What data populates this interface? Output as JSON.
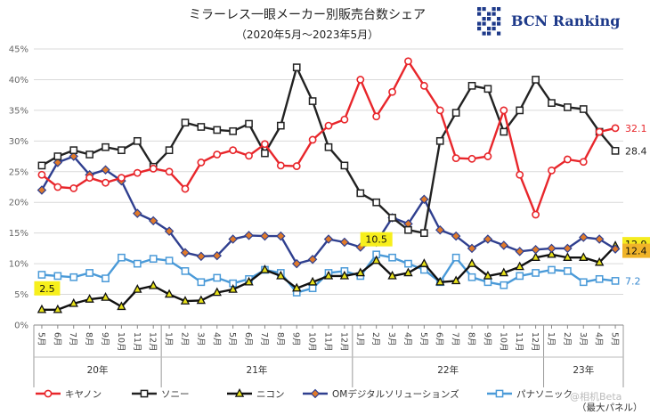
{
  "chart_data": {
    "type": "line",
    "title": "ミラーレス一眼メーカー別販売台数シェア",
    "subtitle": "（2020年5月～2023年5月）",
    "brand": "BCN Ranking",
    "note": "（最大パネル）",
    "watermark": "@相机Beta",
    "ylim": [
      0,
      45
    ],
    "yticks": [
      "0%",
      "5%",
      "10%",
      "15%",
      "20%",
      "25%",
      "30%",
      "35%",
      "40%",
      "45%"
    ],
    "grid": true,
    "legend_position": "bottom",
    "x": [
      "5月",
      "6月",
      "7月",
      "8月",
      "9月",
      "10月",
      "11月",
      "12月",
      "1月",
      "2月",
      "3月",
      "4月",
      "5月",
      "6月",
      "7月",
      "8月",
      "9月",
      "10月",
      "11月",
      "12月",
      "1月",
      "2月",
      "3月",
      "4月",
      "5月",
      "6月",
      "7月",
      "8月",
      "9月",
      "10月",
      "11月",
      "12月",
      "1月",
      "2月",
      "3月",
      "4月",
      "5月"
    ],
    "years": [
      {
        "label": "20年",
        "start": 0,
        "end": 7
      },
      {
        "label": "21年",
        "start": 8,
        "end": 19
      },
      {
        "label": "22年",
        "start": 20,
        "end": 31
      },
      {
        "label": "23年",
        "start": 32,
        "end": 36
      }
    ],
    "series": [
      {
        "name": "キヤノン",
        "color": "#e8262b",
        "marker": "circle",
        "end_label": "32.1",
        "end_label_color": "#e8262b",
        "values": [
          24.5,
          22.5,
          22.3,
          24,
          23.2,
          24,
          24.8,
          25.5,
          25,
          22.2,
          26.5,
          27.8,
          28.5,
          27.6,
          29.5,
          26,
          25.9,
          30.2,
          32.5,
          33.5,
          40,
          34,
          38,
          43,
          39,
          35,
          27.2,
          27.1,
          27.5,
          35,
          24.5,
          18,
          25.2,
          27,
          26.6,
          31.5,
          32.1
        ]
      },
      {
        "name": "ソニー",
        "color": "#222222",
        "marker": "square",
        "end_label": "28.4",
        "end_label_color": "#222222",
        "values": [
          26,
          27.5,
          28.5,
          27.8,
          29,
          28.5,
          30,
          25.8,
          28.5,
          33,
          32.3,
          31.8,
          31.6,
          32.8,
          28,
          32.5,
          42,
          36.5,
          29,
          26,
          21.5,
          20,
          17.5,
          15.5,
          15,
          30,
          34.6,
          39,
          38.5,
          31.5,
          35,
          40,
          36.2,
          35.5,
          35.2,
          31.5,
          28.4
        ]
      },
      {
        "name": "ニコン",
        "color": "#111111",
        "marker": "triangle",
        "marker_fill": "#e8e21a",
        "end_label": "12.9",
        "end_label_color": "#111111",
        "end_label_bg": "#f5ec20",
        "annotations": [
          {
            "index": 0,
            "text": "2.5"
          },
          {
            "index": 21,
            "text": "10.5"
          }
        ],
        "values": [
          2.5,
          2.5,
          3.5,
          4.2,
          4.5,
          3,
          5.8,
          6.4,
          5,
          3.9,
          4,
          5.3,
          5.8,
          7,
          9,
          8,
          6,
          7,
          8,
          8,
          8.5,
          10.5,
          8,
          8.5,
          10,
          7,
          7.2,
          10,
          8,
          8.5,
          9.5,
          11,
          11.5,
          11,
          11,
          10.2,
          12.9
        ]
      },
      {
        "name": "OMデジタルソリューションズ",
        "color": "#2f3f8f",
        "marker": "diamond",
        "marker_fill": "#e07a2a",
        "end_label": "12.4",
        "end_label_color": "#111111",
        "end_label_bg": "#f0b429",
        "values": [
          22,
          26.5,
          27.5,
          24.5,
          25.3,
          23.5,
          18.2,
          17,
          15.3,
          11.8,
          11.2,
          11.3,
          14,
          14.6,
          14.5,
          14.5,
          10,
          10.7,
          14,
          13.5,
          12.7,
          13.5,
          17.5,
          16.5,
          20.5,
          15.5,
          14.5,
          12.5,
          14,
          13,
          12,
          12.3,
          12.5,
          12.5,
          14.3,
          14,
          12.4
        ]
      },
      {
        "name": "パナソニック",
        "color": "#4a9ad8",
        "marker": "square",
        "marker_fill": "#ffffff",
        "end_label": "7.2",
        "end_label_color": "#3a8ad0",
        "values": [
          8.2,
          8,
          7.8,
          8.5,
          7.6,
          11,
          10,
          10.8,
          10.5,
          8.8,
          7,
          7.7,
          6.8,
          7.5,
          9,
          8.5,
          5.3,
          6,
          8.5,
          8.8,
          8,
          11.5,
          11,
          10,
          9,
          7,
          11,
          7.8,
          7,
          6.5,
          8,
          8.5,
          9,
          8.8,
          7,
          7.5,
          7.2
        ]
      }
    ]
  }
}
